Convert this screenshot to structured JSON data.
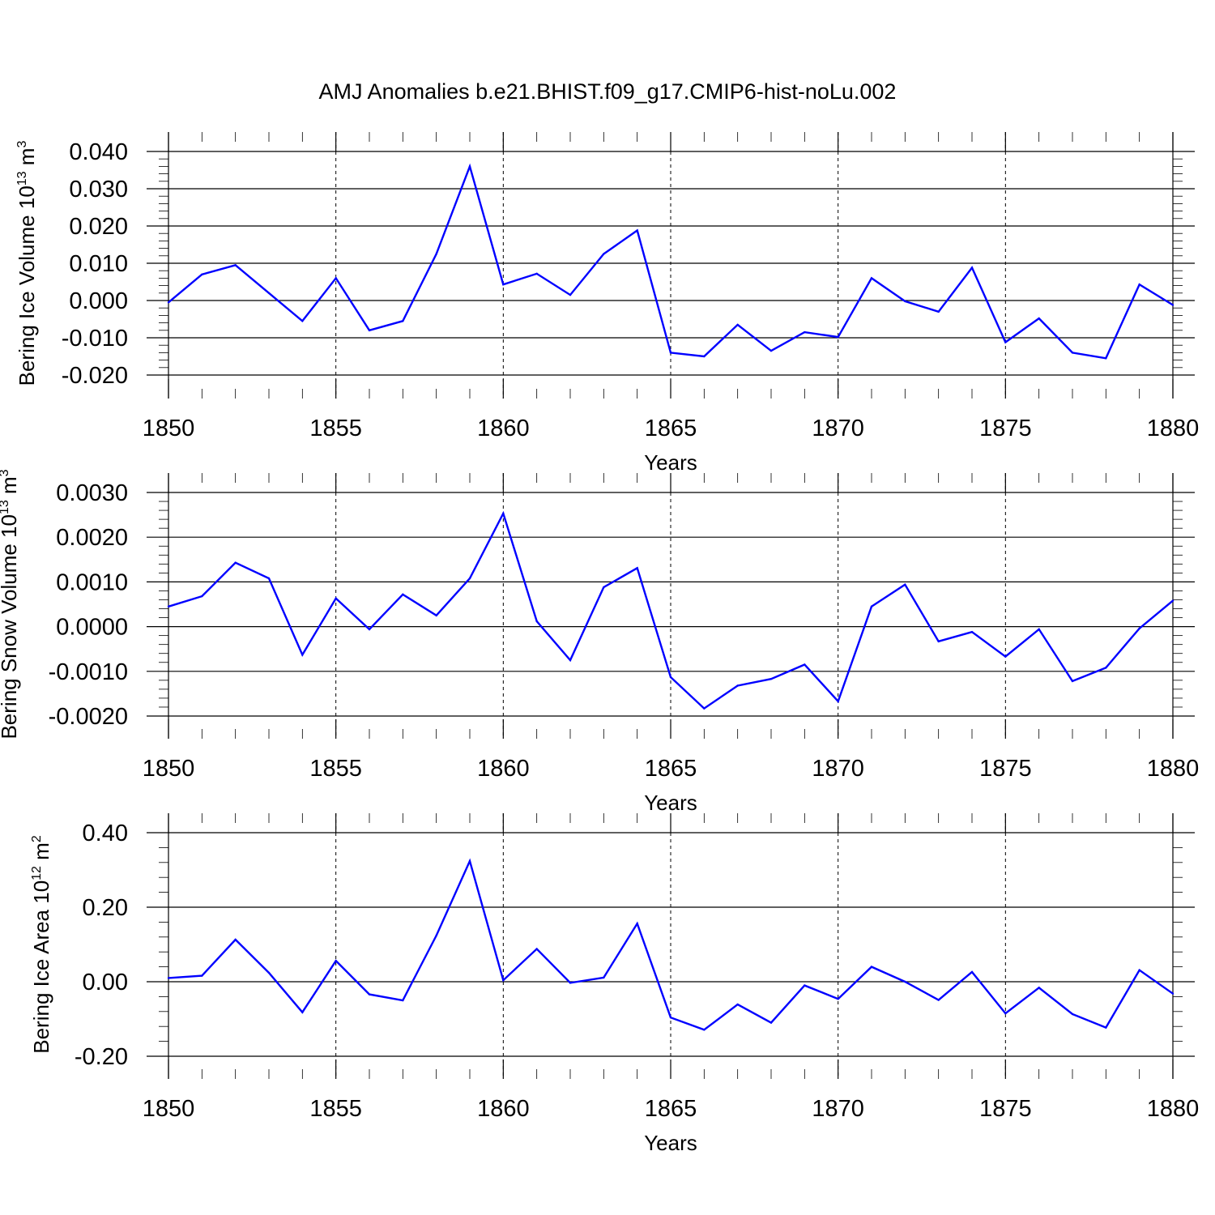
{
  "title": "AMJ Anomalies b.e21.BHIST.f09_g17.CMIP6-hist-noLu.002",
  "colors": {
    "line": "#0000ff",
    "axis": "#000000",
    "grid": "#000000"
  },
  "chart_data": [
    {
      "type": "line",
      "title": "AMJ Anomalies b.e21.BHIST.f09_g17.CMIP6-hist-noLu.002",
      "xlabel": "Years",
      "ylabel": {
        "text": "Bering Ice Volume 10",
        "sup": "13",
        "unit": " m",
        "unit_sup": "3"
      },
      "xlim": [
        1850,
        1880
      ],
      "ylim": [
        -0.02,
        0.04
      ],
      "xticks": [
        "1850",
        "1855",
        "1860",
        "1865",
        "1870",
        "1875",
        "1880"
      ],
      "yticks": [
        "-0.020",
        "-0.010",
        "0.000",
        "0.010",
        "0.020",
        "0.030",
        "0.040"
      ],
      "grid": "vertical dashed at major x ticks",
      "x": [
        1850,
        1851,
        1852,
        1853,
        1854,
        1855,
        1856,
        1857,
        1858,
        1859,
        1860,
        1861,
        1862,
        1863,
        1864,
        1865,
        1866,
        1867,
        1868,
        1869,
        1870,
        1871,
        1872,
        1873,
        1874,
        1875,
        1876,
        1877,
        1878,
        1879,
        1880
      ],
      "values": [
        -0.0005,
        0.007,
        0.0095,
        0.002,
        -0.0055,
        0.006,
        -0.008,
        -0.0055,
        0.0125,
        0.036,
        0.0043,
        0.0072,
        0.0015,
        0.0125,
        0.0188,
        -0.014,
        -0.015,
        -0.0065,
        -0.0135,
        -0.0085,
        -0.0098,
        0.006,
        -0.0002,
        -0.003,
        0.0088,
        -0.0112,
        -0.0048,
        -0.014,
        -0.0155,
        0.0043,
        -0.0012
      ]
    },
    {
      "type": "line",
      "xlabel": "Years",
      "ylabel": {
        "text": "Bering Snow Volume 10",
        "sup": "13",
        "unit": " m",
        "unit_sup": "3"
      },
      "xlim": [
        1850,
        1880
      ],
      "ylim": [
        -0.002,
        0.003
      ],
      "xticks": [
        "1850",
        "1855",
        "1860",
        "1865",
        "1870",
        "1875",
        "1880"
      ],
      "yticks": [
        "-0.0020",
        "-0.0010",
        "0.0000",
        "0.0010",
        "0.0020",
        "0.0030"
      ],
      "grid": "vertical dashed at major x ticks",
      "x": [
        1850,
        1851,
        1852,
        1853,
        1854,
        1855,
        1856,
        1857,
        1858,
        1859,
        1860,
        1861,
        1862,
        1863,
        1864,
        1865,
        1866,
        1867,
        1868,
        1869,
        1870,
        1871,
        1872,
        1873,
        1874,
        1875,
        1876,
        1877,
        1878,
        1879,
        1880
      ],
      "values": [
        0.00045,
        0.00068,
        0.00143,
        0.00108,
        -0.00063,
        0.00063,
        -6e-05,
        0.00072,
        0.00025,
        0.00108,
        0.00253,
        0.00012,
        -0.00075,
        0.00088,
        0.00131,
        -0.00113,
        -0.00183,
        -0.00132,
        -0.00117,
        -0.00085,
        -0.00167,
        0.00045,
        0.00094,
        -0.00033,
        -0.00012,
        -0.00067,
        -6e-05,
        -0.00122,
        -0.00092,
        -4e-05,
        0.00058
      ]
    },
    {
      "type": "line",
      "xlabel": "Years",
      "ylabel": {
        "text": "Bering Ice Area 10",
        "sup": "12",
        "unit": " m",
        "unit_sup": "2"
      },
      "xlim": [
        1850,
        1880
      ],
      "ylim": [
        -0.2,
        0.4
      ],
      "xticks": [
        "1850",
        "1855",
        "1860",
        "1865",
        "1870",
        "1875",
        "1880"
      ],
      "yticks": [
        "-0.20",
        "0.00",
        "0.20",
        "0.40"
      ],
      "grid": "vertical dashed at major x ticks",
      "x": [
        1850,
        1851,
        1852,
        1853,
        1854,
        1855,
        1856,
        1857,
        1858,
        1859,
        1860,
        1861,
        1862,
        1863,
        1864,
        1865,
        1866,
        1867,
        1868,
        1869,
        1870,
        1871,
        1872,
        1873,
        1874,
        1875,
        1876,
        1877,
        1878,
        1879,
        1880
      ],
      "values": [
        0.01,
        0.016,
        0.113,
        0.024,
        -0.082,
        0.056,
        -0.034,
        -0.05,
        0.124,
        0.324,
        0.004,
        0.088,
        -0.003,
        0.011,
        0.156,
        -0.096,
        -0.129,
        -0.061,
        -0.11,
        -0.01,
        -0.046,
        0.04,
        0.0,
        -0.049,
        0.026,
        -0.085,
        -0.016,
        -0.087,
        -0.123,
        0.031,
        -0.032
      ]
    }
  ]
}
